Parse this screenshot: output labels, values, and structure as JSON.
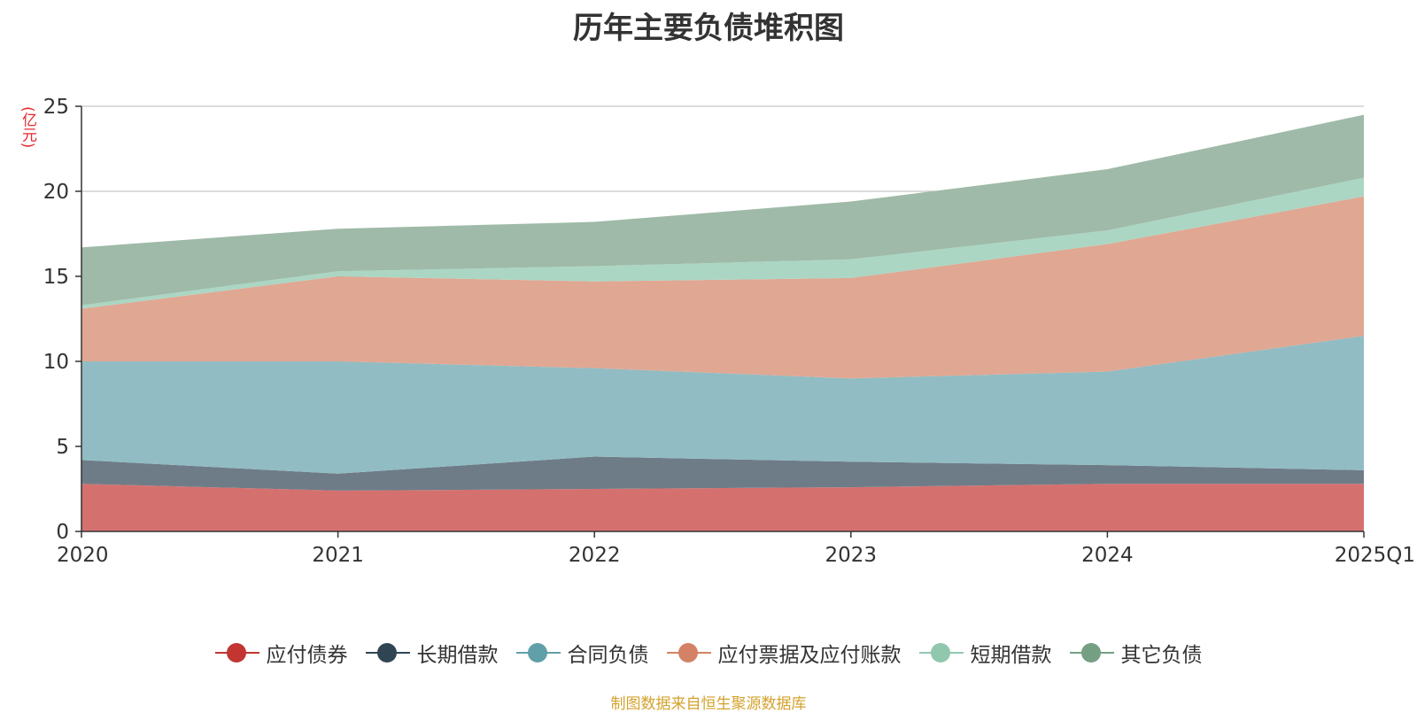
{
  "title": "历年主要负债堆积图",
  "unit_label": "(亿元)",
  "source": "制图数据来自恒生聚源数据库",
  "chart_data": {
    "type": "area",
    "stacked": true,
    "categories": [
      "2020",
      "2021",
      "2022",
      "2023",
      "2024",
      "2025Q1"
    ],
    "ylim": [
      0,
      25
    ],
    "yticks": [
      0,
      5,
      10,
      15,
      20,
      25
    ],
    "grid": true,
    "legend_position": "bottom",
    "series": [
      {
        "name": "应付债券",
        "color": "#c23531",
        "fill": "#d4716f",
        "values": [
          2.8,
          2.4,
          2.5,
          2.6,
          2.8,
          2.8
        ]
      },
      {
        "name": "长期借款",
        "color": "#2f4554",
        "fill": "#6e7c88",
        "values": [
          1.4,
          1.0,
          1.9,
          1.5,
          1.1,
          0.8
        ]
      },
      {
        "name": "合同负债",
        "color": "#61a0a8",
        "fill": "#91bcc3",
        "values": [
          5.8,
          6.6,
          5.2,
          4.9,
          5.5,
          7.9
        ]
      },
      {
        "name": "应付票据及应付账款",
        "color": "#d48265",
        "fill": "#e0a793",
        "values": [
          3.1,
          5.0,
          5.1,
          5.9,
          7.5,
          8.2
        ]
      },
      {
        "name": "短期借款",
        "color": "#91c7ae",
        "fill": "#abd6c3",
        "values": [
          0.2,
          0.3,
          0.9,
          1.1,
          0.8,
          1.1
        ]
      },
      {
        "name": "其它负债",
        "color": "#749f83",
        "fill": "#9fbaa8",
        "values": [
          3.4,
          2.5,
          2.6,
          3.4,
          3.6,
          3.7
        ]
      }
    ]
  }
}
